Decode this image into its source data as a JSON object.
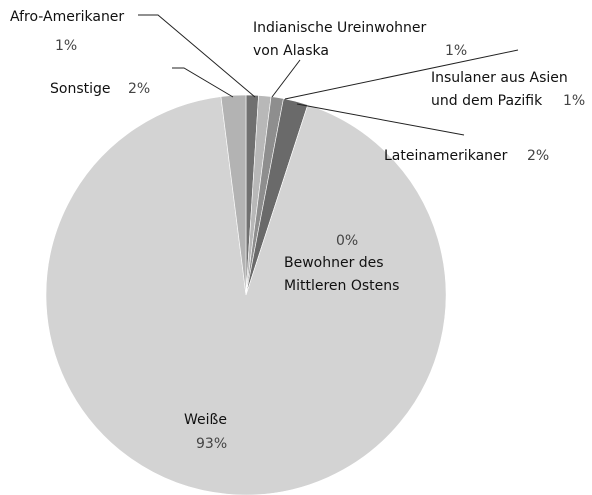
{
  "chart_data": {
    "type": "pie",
    "categories": [
      "Afro-Amerikaner",
      "Indianische Ureinwohner von Alaska",
      "Insulaner aus Asien und dem Pazifik",
      "Lateinamerikaner",
      "Bewohner des Mittleren Ostens",
      "Weiße",
      "Sonstige"
    ],
    "values": [
      1,
      1,
      1,
      2,
      0,
      93,
      2
    ],
    "value_labels": [
      "1%",
      "1%",
      "1%",
      "2%",
      "0%",
      "93%",
      "2%"
    ],
    "colors": [
      "#707070",
      "#b8b8b8",
      "#8e8e8e",
      "#6a6a6a",
      "#9a9a9a",
      "#d3d3d3",
      "#b3b3b3"
    ]
  }
}
